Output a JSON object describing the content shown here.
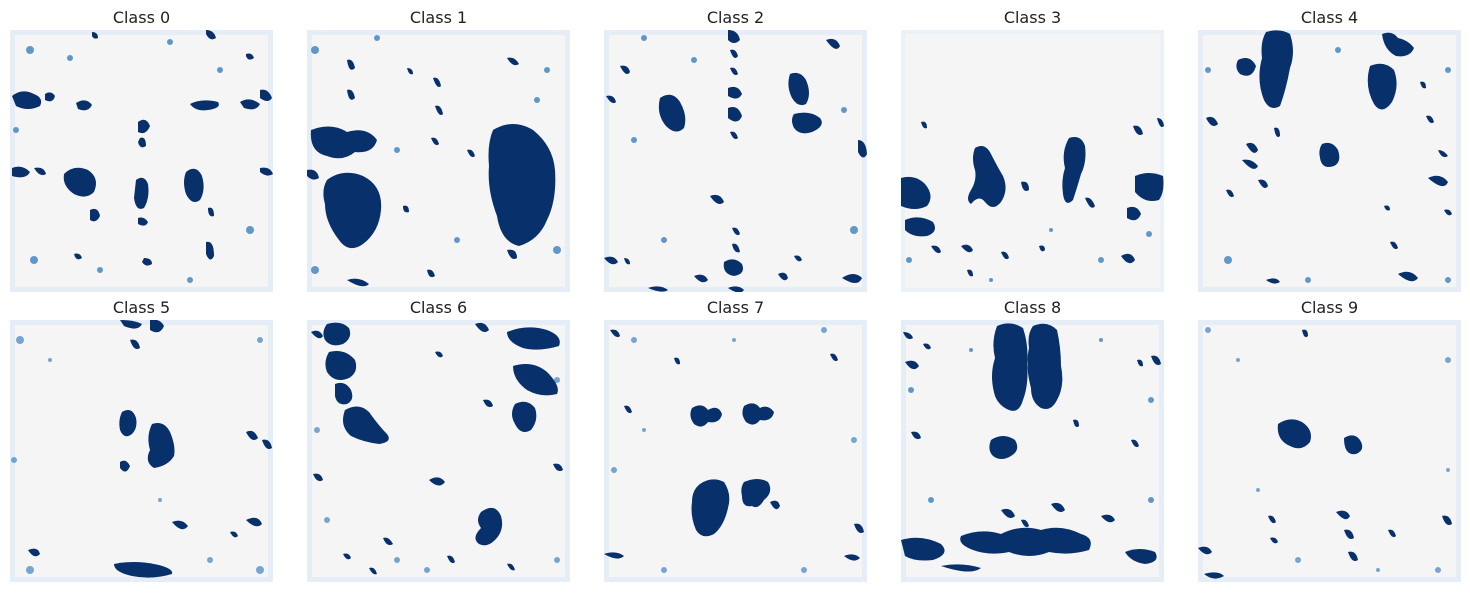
{
  "colors": {
    "background": "#f5f5f5",
    "blob_dark": "#08306b",
    "blob_light": "#2171b5",
    "haze": "#c6dbef"
  },
  "panels": [
    {
      "title": "Class 0"
    },
    {
      "title": "Class 1"
    },
    {
      "title": "Class 2"
    },
    {
      "title": "Class 3"
    },
    {
      "title": "Class 4"
    },
    {
      "title": "Class 5"
    },
    {
      "title": "Class 6"
    },
    {
      "title": "Class 7"
    },
    {
      "title": "Class 8"
    },
    {
      "title": "Class 9"
    }
  ]
}
